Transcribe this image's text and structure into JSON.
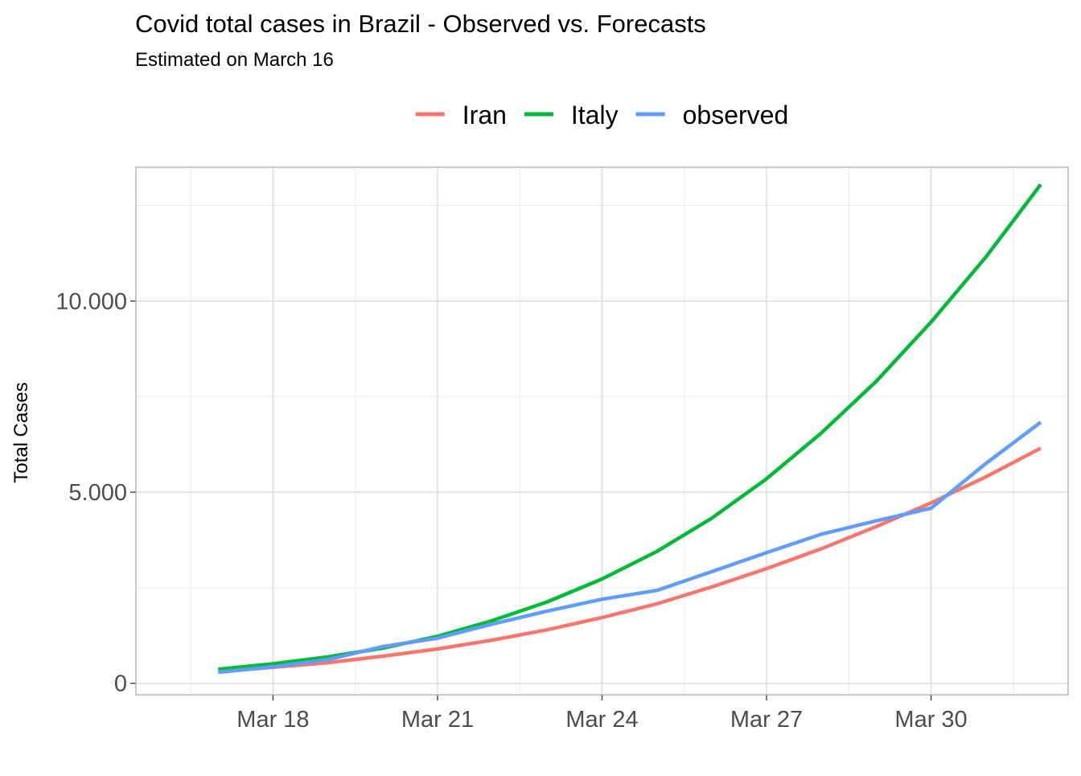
{
  "chart_data": {
    "type": "line",
    "title": "Covid total cases in Brazil - Observed vs. Forecasts",
    "subtitle": "Estimated on March 16",
    "xlabel": "",
    "ylabel": "Total Cases",
    "x": [
      "Mar 17",
      "Mar 18",
      "Mar 19",
      "Mar 20",
      "Mar 21",
      "Mar 22",
      "Mar 23",
      "Mar 24",
      "Mar 25",
      "Mar 26",
      "Mar 27",
      "Mar 28",
      "Mar 29",
      "Mar 30",
      "Mar 31",
      "Apr 01"
    ],
    "x_ticks": [
      "Mar 18",
      "Mar 21",
      "Mar 24",
      "Mar 27",
      "Mar 30"
    ],
    "y_ticks": [
      "0",
      "5.000",
      "10.000"
    ],
    "y_tick_values": [
      0,
      5000,
      10000
    ],
    "xlim": [
      "Mar 16",
      "Apr 01"
    ],
    "ylim": [
      -300,
      13500
    ],
    "grid": true,
    "legend_position": "top",
    "series": [
      {
        "name": "Iran",
        "color": "#F8766D",
        "values": [
          300,
          420,
          540,
          710,
          900,
          1130,
          1400,
          1720,
          2080,
          2520,
          3000,
          3520,
          4100,
          4720,
          5400,
          6150
        ]
      },
      {
        "name": "Italy",
        "color": "#00BA38",
        "values": [
          370,
          510,
          690,
          920,
          1230,
          1640,
          2130,
          2730,
          3450,
          4320,
          5350,
          6550,
          7900,
          9450,
          11150,
          13050
        ]
      },
      {
        "name": "observed",
        "color": "#619CFF",
        "values": [
          290,
          430,
          620,
          960,
          1180,
          1550,
          1890,
          2200,
          2430,
          2920,
          3420,
          3900,
          4250,
          4580,
          5750,
          6830
        ]
      }
    ]
  }
}
